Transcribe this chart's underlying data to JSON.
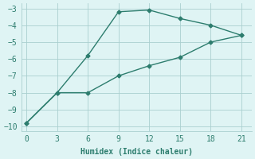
{
  "line1_x": [
    0,
    3,
    6,
    9,
    12,
    15,
    18,
    21
  ],
  "line1_y": [
    -9.8,
    -8.0,
    -5.8,
    -3.2,
    -3.1,
    -3.6,
    -4.0,
    -4.6
  ],
  "line2_x": [
    0,
    3,
    6,
    9,
    12,
    15,
    18,
    21
  ],
  "line2_y": [
    -9.8,
    -8.0,
    -8.0,
    -7.0,
    -6.4,
    -5.9,
    -5.0,
    -4.6
  ],
  "color": "#2d7d6e",
  "bg_color": "#dff4f4",
  "grid_color": "#aacfcf",
  "xlabel": "Humidex (Indice chaleur)",
  "xlim": [
    -0.5,
    22
  ],
  "ylim": [
    -10.3,
    -2.7
  ],
  "xticks": [
    0,
    3,
    6,
    9,
    12,
    15,
    18,
    21
  ],
  "yticks": [
    -10,
    -9,
    -8,
    -7,
    -6,
    -5,
    -4,
    -3
  ],
  "marker": "D",
  "markersize": 2.5,
  "linewidth": 1.0,
  "xlabel_fontsize": 7,
  "tick_fontsize": 7,
  "font_family": "monospace"
}
